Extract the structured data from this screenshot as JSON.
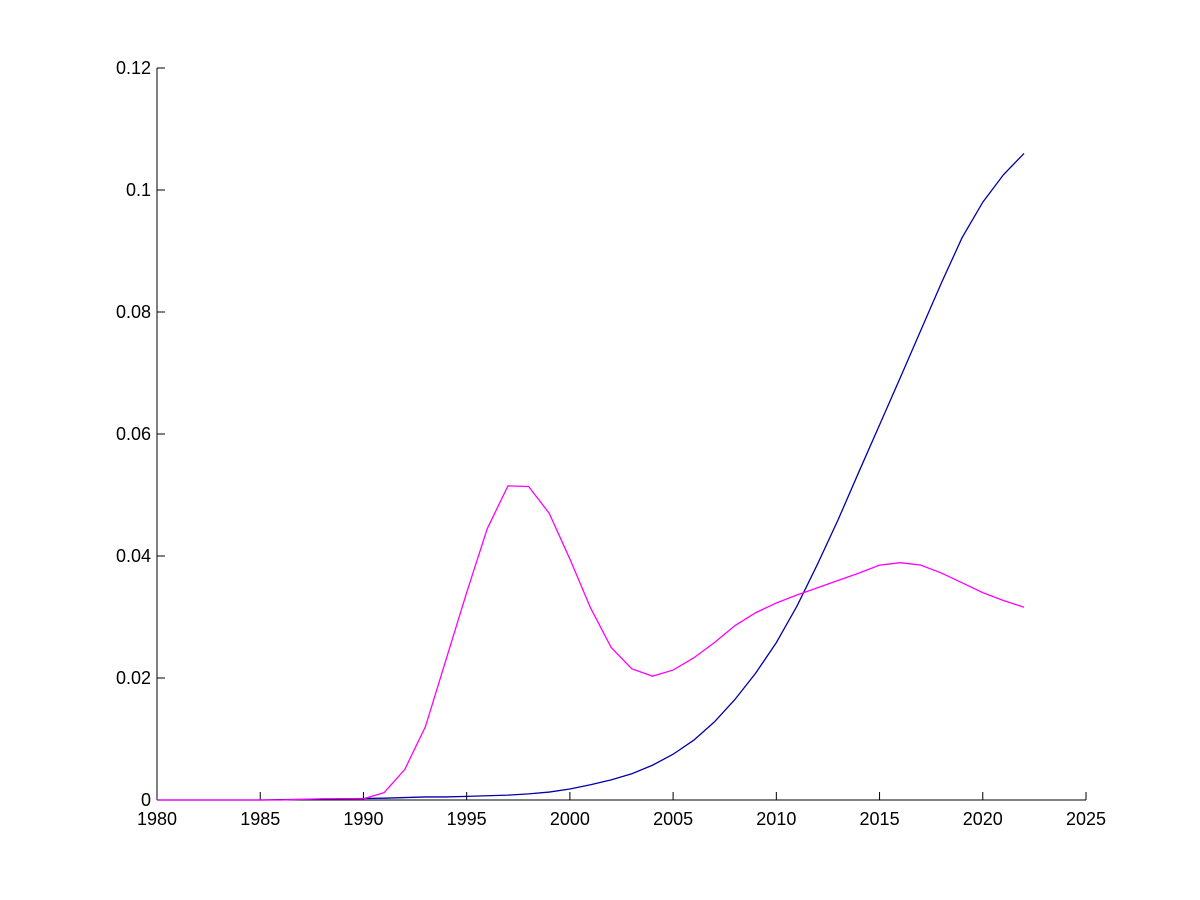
{
  "chart_data": {
    "type": "line",
    "title": "",
    "xlabel": "",
    "ylabel": "",
    "xlim": [
      1980,
      2025
    ],
    "ylim": [
      0,
      0.12
    ],
    "xticks": [
      1980,
      1985,
      1990,
      1995,
      2000,
      2005,
      2010,
      2015,
      2020,
      2025
    ],
    "yticks": [
      0,
      0.02,
      0.04,
      0.06,
      0.08,
      0.1,
      0.12
    ],
    "xtick_labels": [
      "1980",
      "1985",
      "1990",
      "1995",
      "2000",
      "2005",
      "2010",
      "2015",
      "2020",
      "2025"
    ],
    "ytick_labels": [
      "0",
      "0.02",
      "0.04",
      "0.06",
      "0.08",
      "0.1",
      "0.12"
    ],
    "grid": false,
    "legend": "none",
    "x": [
      1980,
      1981,
      1982,
      1983,
      1984,
      1985,
      1986,
      1987,
      1988,
      1989,
      1990,
      1991,
      1992,
      1993,
      1994,
      1995,
      1996,
      1997,
      1998,
      1999,
      2000,
      2001,
      2002,
      2003,
      2004,
      2005,
      2006,
      2007,
      2008,
      2009,
      2010,
      2011,
      2012,
      2013,
      2014,
      2015,
      2016,
      2017,
      2018,
      2019,
      2020,
      2021,
      2022
    ],
    "series": [
      {
        "color": "#0000aa",
        "values": [
          0,
          0,
          0,
          0,
          0,
          0,
          5e-05,
          0.0001,
          0.00015,
          0.0002,
          0.00025,
          0.0003,
          0.0004,
          0.0005,
          0.0005,
          0.0006,
          0.0007,
          0.0008,
          0.001,
          0.0013,
          0.0018,
          0.0025,
          0.0033,
          0.0043,
          0.0057,
          0.0075,
          0.0098,
          0.0128,
          0.0165,
          0.0208,
          0.0258,
          0.0318,
          0.0387,
          0.046,
          0.0538,
          0.0615,
          0.0692,
          0.077,
          0.0848,
          0.0922,
          0.098,
          0.1025,
          0.106
        ]
      },
      {
        "color": "#ff00ff",
        "values": [
          0,
          0,
          0,
          0,
          0,
          0,
          0,
          0.0001,
          0.0002,
          0.0002,
          0.0002,
          0.0012,
          0.005,
          0.012,
          0.023,
          0.034,
          0.0445,
          0.0515,
          0.0514,
          0.047,
          0.0395,
          0.0315,
          0.025,
          0.0215,
          0.0203,
          0.0213,
          0.0233,
          0.0258,
          0.0286,
          0.0307,
          0.0323,
          0.0336,
          0.0348,
          0.036,
          0.0372,
          0.0385,
          0.0389,
          0.0385,
          0.0372,
          0.0356,
          0.034,
          0.0327,
          0.0316
        ]
      }
    ]
  }
}
